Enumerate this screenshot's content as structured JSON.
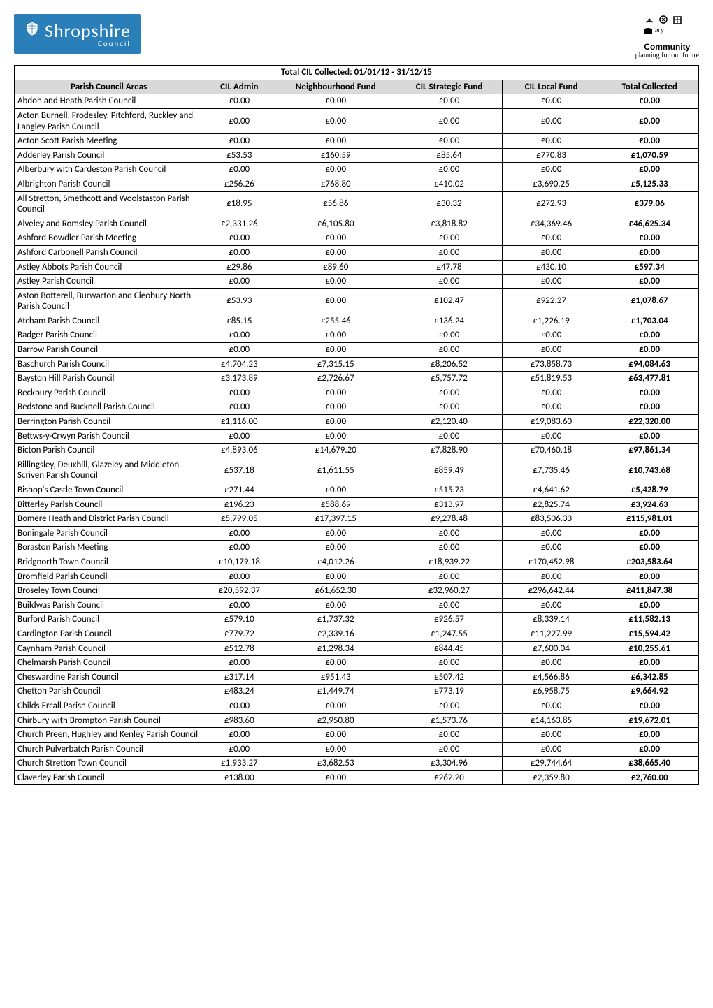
{
  "logo_left": {
    "main": "Shropshire",
    "sub": "Council"
  },
  "logo_right": {
    "line1": "my",
    "line2": "Community",
    "line3": "planning for our future"
  },
  "table": {
    "title": "Total CIL Collected: 01/01/12 - 31/12/15",
    "columns": [
      "Parish Council Areas",
      "CIL Admin",
      "Neighbourhood Fund",
      "CIL Strategic Fund",
      "CIL Local Fund",
      "Total Collected"
    ],
    "rows": [
      [
        "Abdon and Heath Parish Council",
        "£0.00",
        "£0.00",
        "£0.00",
        "£0.00",
        "£0.00"
      ],
      [
        "Acton Burnell, Frodesley, Pitchford, Ruckley and Langley Parish Council",
        "£0.00",
        "£0.00",
        "£0.00",
        "£0.00",
        "£0.00"
      ],
      [
        "Acton Scott Parish Meeting",
        "£0.00",
        "£0.00",
        "£0.00",
        "£0.00",
        "£0.00"
      ],
      [
        "Adderley Parish Council",
        "£53.53",
        "£160.59",
        "£85.64",
        "£770.83",
        "£1,070.59"
      ],
      [
        "Alberbury with Cardeston Parish Council",
        "£0.00",
        "£0.00",
        "£0.00",
        "£0.00",
        "£0.00"
      ],
      [
        "Albrighton Parish Council",
        "£256.26",
        "£768.80",
        "£410.02",
        "£3,690.25",
        "£5,125.33"
      ],
      [
        "All Stretton, Smethcott and Woolstaston Parish Council",
        "£18.95",
        "£56.86",
        "£30.32",
        "£272.93",
        "£379.06"
      ],
      [
        "Alveley and Romsley Parish Council",
        "£2,331.26",
        "£6,105.80",
        "£3,818.82",
        "£34,369.46",
        "£46,625.34"
      ],
      [
        "Ashford Bowdler Parish Meeting",
        "£0.00",
        "£0.00",
        "£0.00",
        "£0.00",
        "£0.00"
      ],
      [
        "Ashford Carbonell Parish Council",
        "£0.00",
        "£0.00",
        "£0.00",
        "£0.00",
        "£0.00"
      ],
      [
        "Astley Abbots Parish Council",
        "£29.86",
        "£89.60",
        "£47.78",
        "£430.10",
        "£597.34"
      ],
      [
        "Astley Parish Council",
        "£0.00",
        "£0.00",
        "£0.00",
        "£0.00",
        "£0.00"
      ],
      [
        "Aston Botterell, Burwarton and Cleobury North Parish Council",
        "£53.93",
        "£0.00",
        "£102.47",
        "£922.27",
        "£1,078.67"
      ],
      [
        "Atcham Parish Council",
        "£85.15",
        "£255.46",
        "£136.24",
        "£1,226.19",
        "£1,703.04"
      ],
      [
        "Badger Parish Council",
        "£0.00",
        "£0.00",
        "£0.00",
        "£0.00",
        "£0.00"
      ],
      [
        "Barrow Parish Council",
        "£0.00",
        "£0.00",
        "£0.00",
        "£0.00",
        "£0.00"
      ],
      [
        "Baschurch Parish Council",
        "£4,704.23",
        "£7,315.15",
        "£8,206.52",
        "£73,858.73",
        "£94,084.63"
      ],
      [
        "Bayston Hill Parish Council",
        "£3,173.89",
        "£2,726.67",
        "£5,757.72",
        "£51,819.53",
        "£63,477.81"
      ],
      [
        "Beckbury Parish Council",
        "£0.00",
        "£0.00",
        "£0.00",
        "£0.00",
        "£0.00"
      ],
      [
        "Bedstone and Bucknell Parish Council",
        "£0.00",
        "£0.00",
        "£0.00",
        "£0.00",
        "£0.00"
      ],
      [
        "Berrington Parish Council",
        "£1,116.00",
        "£0.00",
        "£2,120.40",
        "£19,083.60",
        "£22,320.00"
      ],
      [
        "Bettws-y-Crwyn Parish Council",
        "£0.00",
        "£0.00",
        "£0.00",
        "£0.00",
        "£0.00"
      ],
      [
        "Bicton Parish Council",
        "£4,893.06",
        "£14,679.20",
        "£7,828.90",
        "£70,460.18",
        "£97,861.34"
      ],
      [
        "Billingsley, Deuxhill, Glazeley and Middleton Scriven Parish Council",
        "£537.18",
        "£1,611.55",
        "£859.49",
        "£7,735.46",
        "£10,743.68"
      ],
      [
        "Bishop's Castle Town Council",
        "£271.44",
        "£0.00",
        "£515.73",
        "£4,641.62",
        "£5,428.79"
      ],
      [
        "Bitterley Parish Council",
        "£196.23",
        "£588.69",
        "£313.97",
        "£2,825.74",
        "£3,924.63"
      ],
      [
        "Bomere Heath and District Parish Council",
        "£5,799.05",
        "£17,397.15",
        "£9,278.48",
        "£83,506.33",
        "£115,981.01"
      ],
      [
        "Boningale Parish Council",
        "£0.00",
        "£0.00",
        "£0.00",
        "£0.00",
        "£0.00"
      ],
      [
        "Boraston Parish Meeting",
        "£0.00",
        "£0.00",
        "£0.00",
        "£0.00",
        "£0.00"
      ],
      [
        "Bridgnorth Town Council",
        "£10,179.18",
        "£4,012.26",
        "£18,939.22",
        "£170,452.98",
        "£203,583.64"
      ],
      [
        "Bromfield Parish Council",
        "£0.00",
        "£0.00",
        "£0.00",
        "£0.00",
        "£0.00"
      ],
      [
        "Broseley Town Council",
        "£20,592.37",
        "£61,652.30",
        "£32,960.27",
        "£296,642.44",
        "£411,847.38"
      ],
      [
        "Buildwas Parish Council",
        "£0.00",
        "£0.00",
        "£0.00",
        "£0.00",
        "£0.00"
      ],
      [
        "Burford Parish Council",
        "£579.10",
        "£1,737.32",
        "£926.57",
        "£8,339.14",
        "£11,582.13"
      ],
      [
        "Cardington Parish Council",
        "£779.72",
        "£2,339.16",
        "£1,247.55",
        "£11,227.99",
        "£15,594.42"
      ],
      [
        "Caynham Parish Council",
        "£512.78",
        "£1,298.34",
        "£844.45",
        "£7,600.04",
        "£10,255.61"
      ],
      [
        "Chelmarsh Parish Council",
        "£0.00",
        "£0.00",
        "£0.00",
        "£0.00",
        "£0.00"
      ],
      [
        "Cheswardine Parish Council",
        "£317.14",
        "£951.43",
        "£507.42",
        "£4,566.86",
        "£6,342.85"
      ],
      [
        "Chetton Parish Council",
        "£483.24",
        "£1,449.74",
        "£773.19",
        "£6,958.75",
        "£9,664.92"
      ],
      [
        "Childs Ercall Parish Council",
        "£0.00",
        "£0.00",
        "£0.00",
        "£0.00",
        "£0.00"
      ],
      [
        "Chirbury with Brompton Parish Council",
        "£983.60",
        "£2,950.80",
        "£1,573.76",
        "£14,163.85",
        "£19,672.01"
      ],
      [
        "Church Preen, Hughley and Kenley Parish Council",
        "£0.00",
        "£0.00",
        "£0.00",
        "£0.00",
        "£0.00"
      ],
      [
        "Church Pulverbatch Parish Council",
        "£0.00",
        "£0.00",
        "£0.00",
        "£0.00",
        "£0.00"
      ],
      [
        "Church Stretton Town Council",
        "£1,933.27",
        "£3,682.53",
        "£3,304.96",
        "£29,744.64",
        "£38,665.40"
      ],
      [
        "Claverley Parish Council",
        "£138.00",
        "£0.00",
        "£262.20",
        "£2,359.80",
        "£2,760.00"
      ]
    ]
  },
  "colors": {
    "header_bg": "#d9d9d9",
    "logo_bg": "#2a7fb8",
    "border": "#000000",
    "text": "#000000"
  }
}
